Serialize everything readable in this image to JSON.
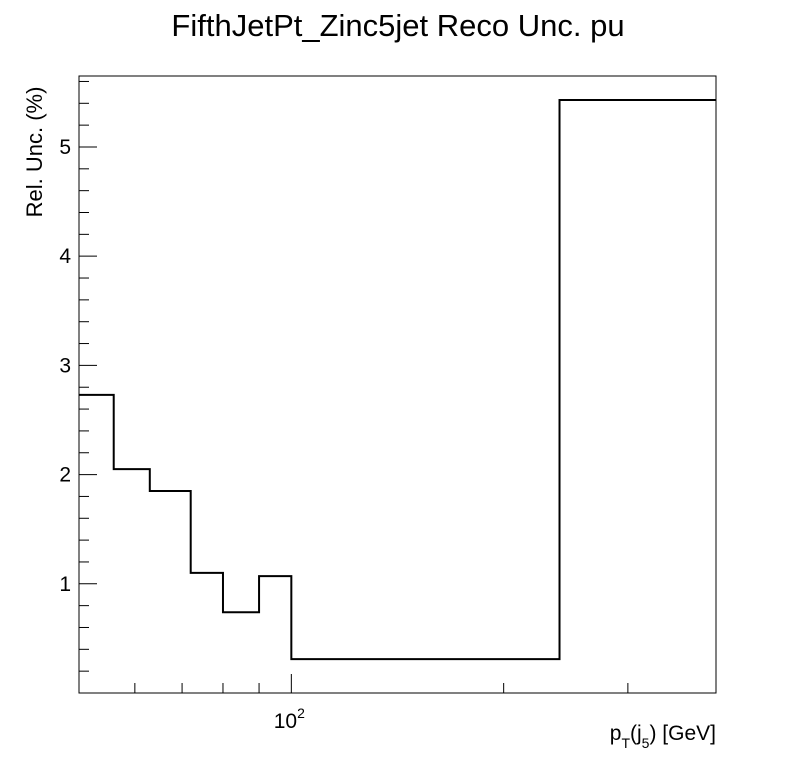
{
  "chart_data": {
    "type": "line",
    "title": "FifthJetPt_Zinc5jet Reco Unc. pu",
    "xlabel_parts": [
      "p",
      "T",
      "(j",
      "5",
      ") [GeV]"
    ],
    "ylabel": "Rel. Unc. (%)",
    "x_scale": "log",
    "xlim": [
      50,
      400
    ],
    "ylim": [
      0,
      5.65
    ],
    "y_tick_labels": [
      "1",
      "2",
      "3",
      "4",
      "5"
    ],
    "x_tick_label": {
      "base": "10",
      "exp": "2"
    },
    "bins": [
      {
        "x_low": 50,
        "x_high": 56,
        "value": 2.73
      },
      {
        "x_low": 56,
        "x_high": 63,
        "value": 2.05
      },
      {
        "x_low": 63,
        "x_high": 72,
        "value": 1.85
      },
      {
        "x_low": 72,
        "x_high": 80,
        "value": 1.1
      },
      {
        "x_low": 80,
        "x_high": 90,
        "value": 0.74
      },
      {
        "x_low": 90,
        "x_high": 100,
        "value": 1.07
      },
      {
        "x_low": 100,
        "x_high": 240,
        "value": 0.31
      },
      {
        "x_low": 240,
        "x_high": 400,
        "value": 5.43
      }
    ],
    "grid": false,
    "legend": "none",
    "line_color": "#000000"
  }
}
